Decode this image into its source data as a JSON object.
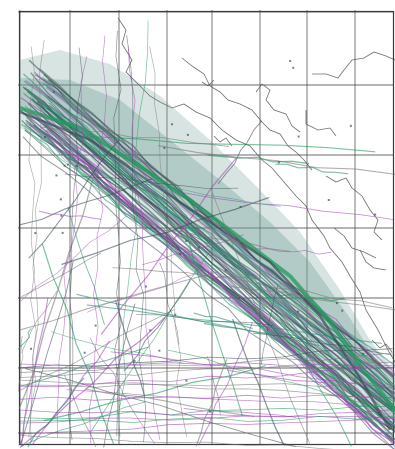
{
  "map": {
    "style": {
      "background": "#ffffff",
      "grid": "#3a3a3a",
      "coast": "#4a4a4a",
      "track_dark": "#3b4f55",
      "track_teal": "#2f8f78",
      "track_green": "#1f9a5c",
      "track_purple": "#a246b8",
      "track_gray": "#7a7a7a",
      "band_fill": "#6f9f95"
    },
    "icons": {
      "grid": "lat-lon-grid",
      "coast": "coastline",
      "corridor": "shipping-lane-density"
    }
  }
}
